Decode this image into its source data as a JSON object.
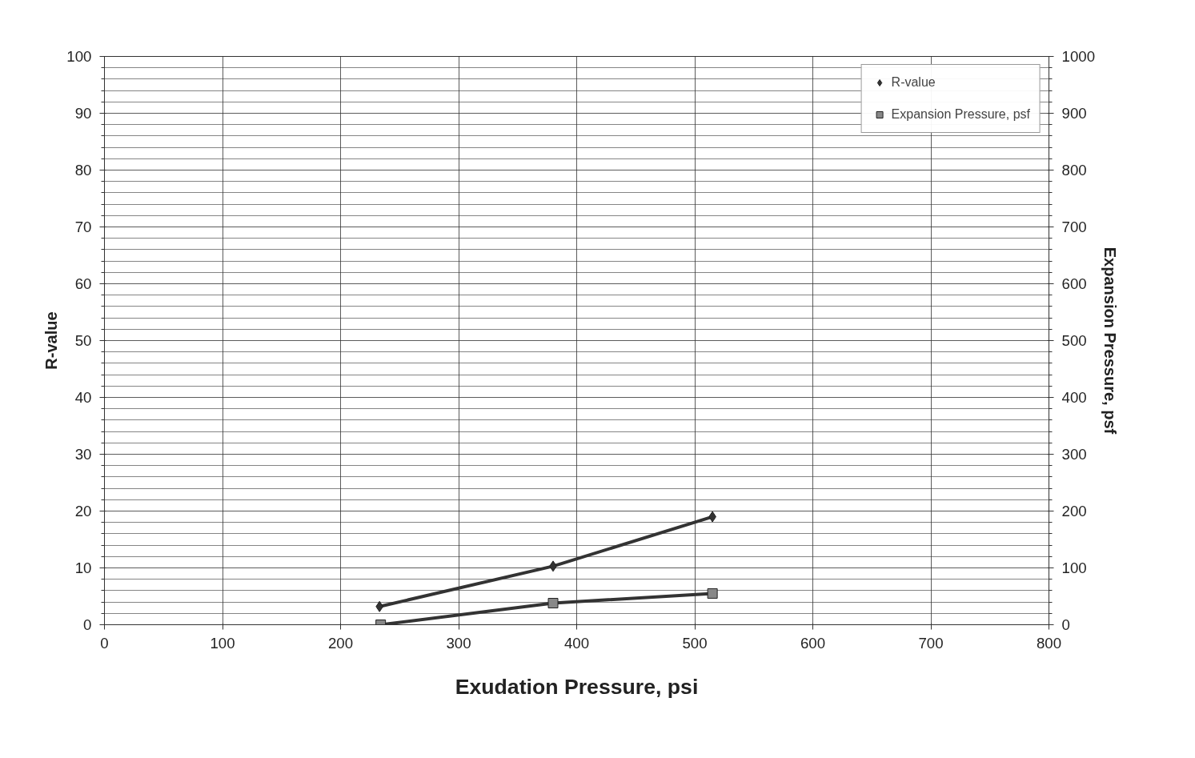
{
  "chart_data": {
    "type": "line",
    "xlabel": "Exudation Pressure, psi",
    "ylabel": "R-value",
    "y2label": "Expansion Pressure, psf",
    "xlim": [
      0,
      800
    ],
    "xticks": [
      0,
      100,
      200,
      300,
      400,
      500,
      600,
      700,
      800
    ],
    "ylim": [
      0,
      100
    ],
    "yticks": [
      0,
      10,
      20,
      30,
      40,
      50,
      60,
      70,
      80,
      90,
      100
    ],
    "y2lim": [
      0,
      1000
    ],
    "y2ticks": [
      0,
      100,
      200,
      300,
      400,
      500,
      600,
      700,
      800,
      900,
      1000
    ],
    "grid": true,
    "legend": "top right",
    "series": [
      {
        "name": "R-value",
        "color": "#333333",
        "marker": "diamond",
        "x": [
          233,
          380,
          515
        ],
        "values": [
          3.2,
          10.3,
          19.0
        ]
      },
      {
        "name": "Expansion Pressure, psf",
        "color": "#888888",
        "marker": "square",
        "axis": "y2",
        "x": [
          234,
          380,
          515
        ],
        "values": [
          0,
          38,
          55
        ]
      }
    ]
  }
}
